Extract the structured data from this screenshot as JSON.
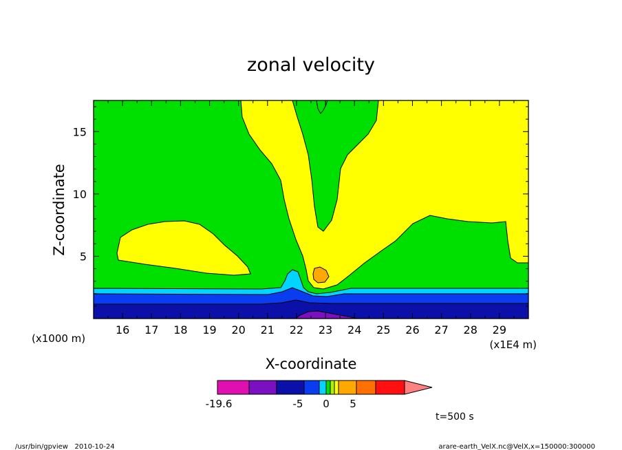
{
  "chart_data": {
    "type": "heatmap",
    "title": "zonal velocity",
    "xlabel": "X-coordinate",
    "ylabel": "Z-coordinate",
    "x_unit_left": "(x1000 m)",
    "x_unit_right": "(x1E4 m)",
    "x_ticks": [
      "16",
      "17",
      "18",
      "19",
      "20",
      "21",
      "22",
      "23",
      "24",
      "25",
      "26",
      "27",
      "28",
      "29"
    ],
    "x_tick_values": [
      16,
      17,
      18,
      19,
      20,
      21,
      22,
      23,
      24,
      25,
      26,
      27,
      28,
      29
    ],
    "y_ticks": [
      "5",
      "10",
      "15"
    ],
    "y_tick_values": [
      5,
      10,
      15
    ],
    "xlim": [
      15,
      30
    ],
    "ylim": [
      0,
      17.5
    ],
    "colorbar": {
      "colors": [
        "#e010b0",
        "#7a10c0",
        "#0a10a8",
        "#0a3cf0",
        "#00d4ff",
        "#00e000",
        "#b0f000",
        "#ffff00",
        "#ffa800",
        "#ff7000",
        "#ff1010",
        "#ff8080"
      ],
      "tick_labels": [
        "-19.6",
        "-5",
        "0",
        "5"
      ]
    },
    "time_label": "t=500 s"
  },
  "footer": {
    "left": "/usr/bin/gpview   2010-10-24",
    "right": "arare-earth_VelX.nc@VelX,x=150000:300000"
  }
}
